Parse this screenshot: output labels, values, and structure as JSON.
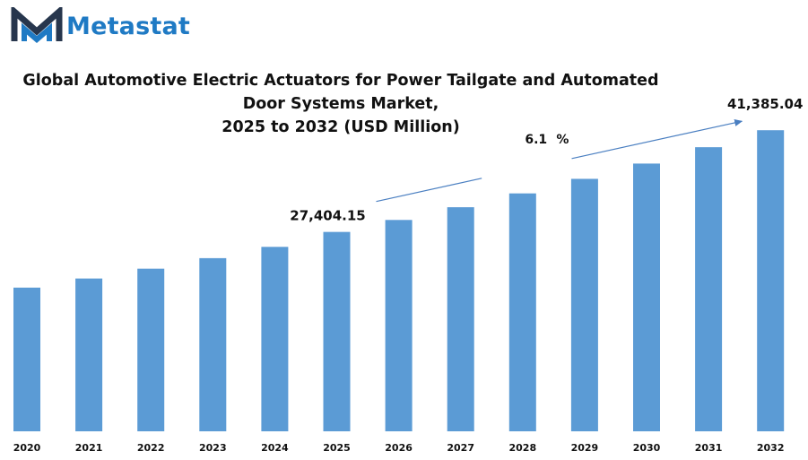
{
  "brand": {
    "name": "Metastat",
    "icon": "metastat-m-logo-icon",
    "color": "#1f7ac4",
    "dark_color": "#27364d"
  },
  "chart_data": {
    "type": "bar",
    "title_lines": [
      "Global Automotive Electric Actuators for Power Tailgate and Automated",
      "Door Systems Market,",
      "2025 to 2032 (USD Million)"
    ],
    "categories": [
      "2020",
      "2021",
      "2022",
      "2023",
      "2024",
      "2025",
      "2026",
      "2027",
      "2028",
      "2029",
      "2030",
      "2031",
      "2032"
    ],
    "series": [
      {
        "values": [
          19750,
          21000,
          22350,
          23800,
          25350,
          27404.15,
          29050,
          30800,
          32700,
          34700,
          36800,
          39050,
          41385.04
        ],
        "color": "#5b9bd5"
      }
    ],
    "data_labels": [
      {
        "category": "2025",
        "text": "27,404.15"
      },
      {
        "category": "2032",
        "text": "41,385.04"
      }
    ],
    "annotations": [
      {
        "type": "growth-arrow",
        "from": "2025",
        "to": "2032",
        "value": "6.1",
        "unit": "%"
      }
    ],
    "ylim": [
      0,
      44000
    ],
    "grid": false,
    "legend": "none",
    "colors": {
      "bar": "#5b9bd5",
      "arrow": "#4a7fc1",
      "text": "#111111"
    }
  }
}
